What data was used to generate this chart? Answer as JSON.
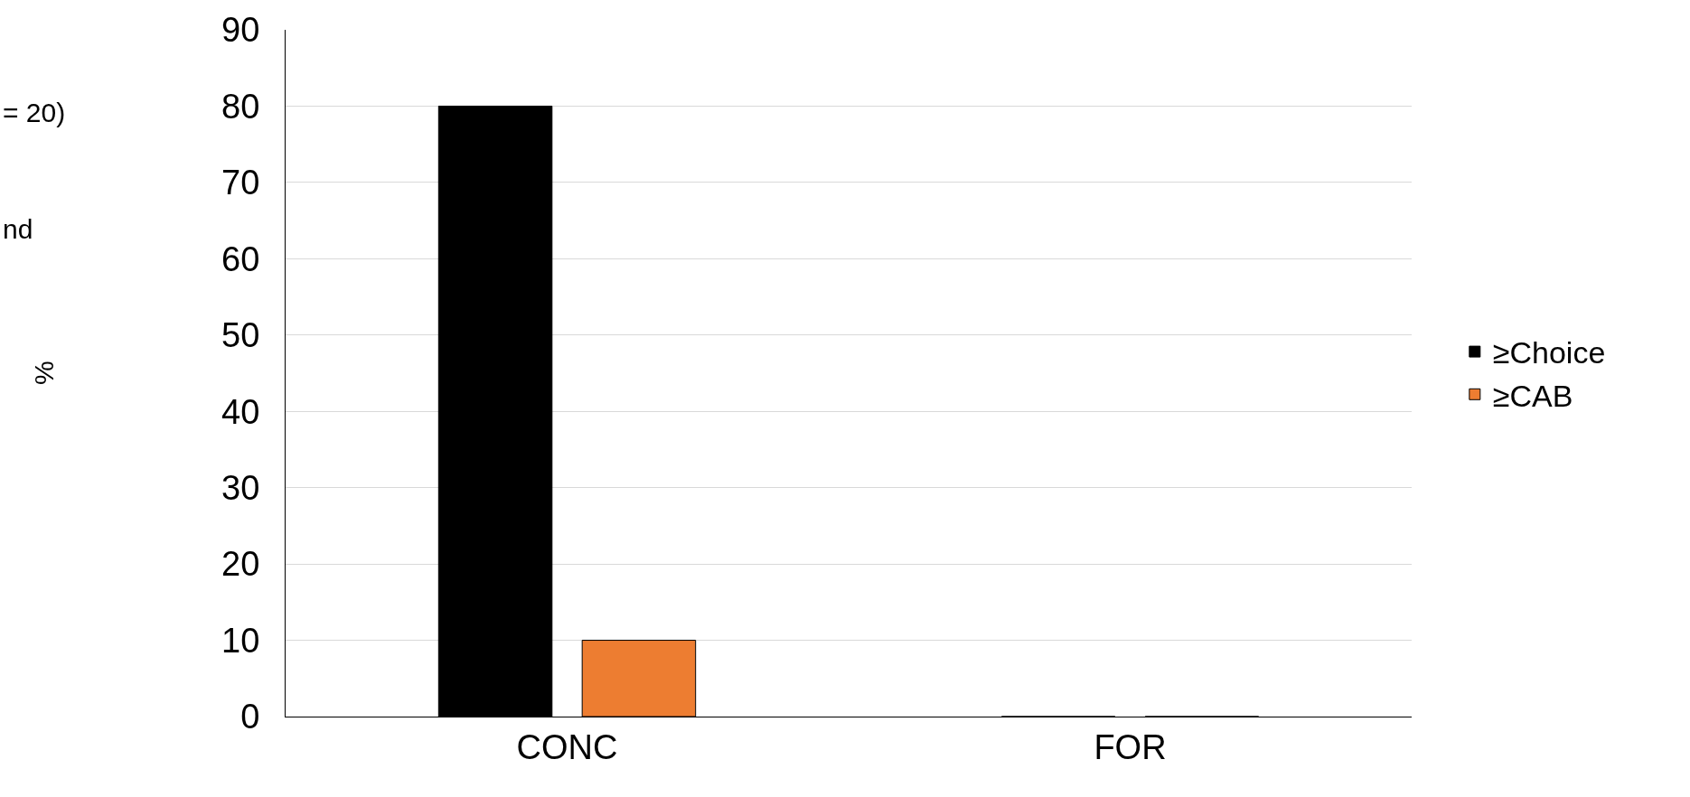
{
  "chart_data": {
    "type": "bar",
    "annotations": [
      "= 20)",
      "nd",
      "%"
    ],
    "categories": [
      "CONC",
      "FOR"
    ],
    "series": [
      {
        "name": "≥Choice",
        "color": "#000000",
        "values": [
          80,
          0
        ]
      },
      {
        "name": "≥CAB",
        "color": "#ed7d31",
        "values": [
          10,
          0
        ]
      }
    ],
    "ylim": [
      0,
      90
    ],
    "yticks": [
      0,
      10,
      20,
      30,
      40,
      50,
      60,
      70,
      80,
      90
    ],
    "grid": "y",
    "legend": "right"
  }
}
